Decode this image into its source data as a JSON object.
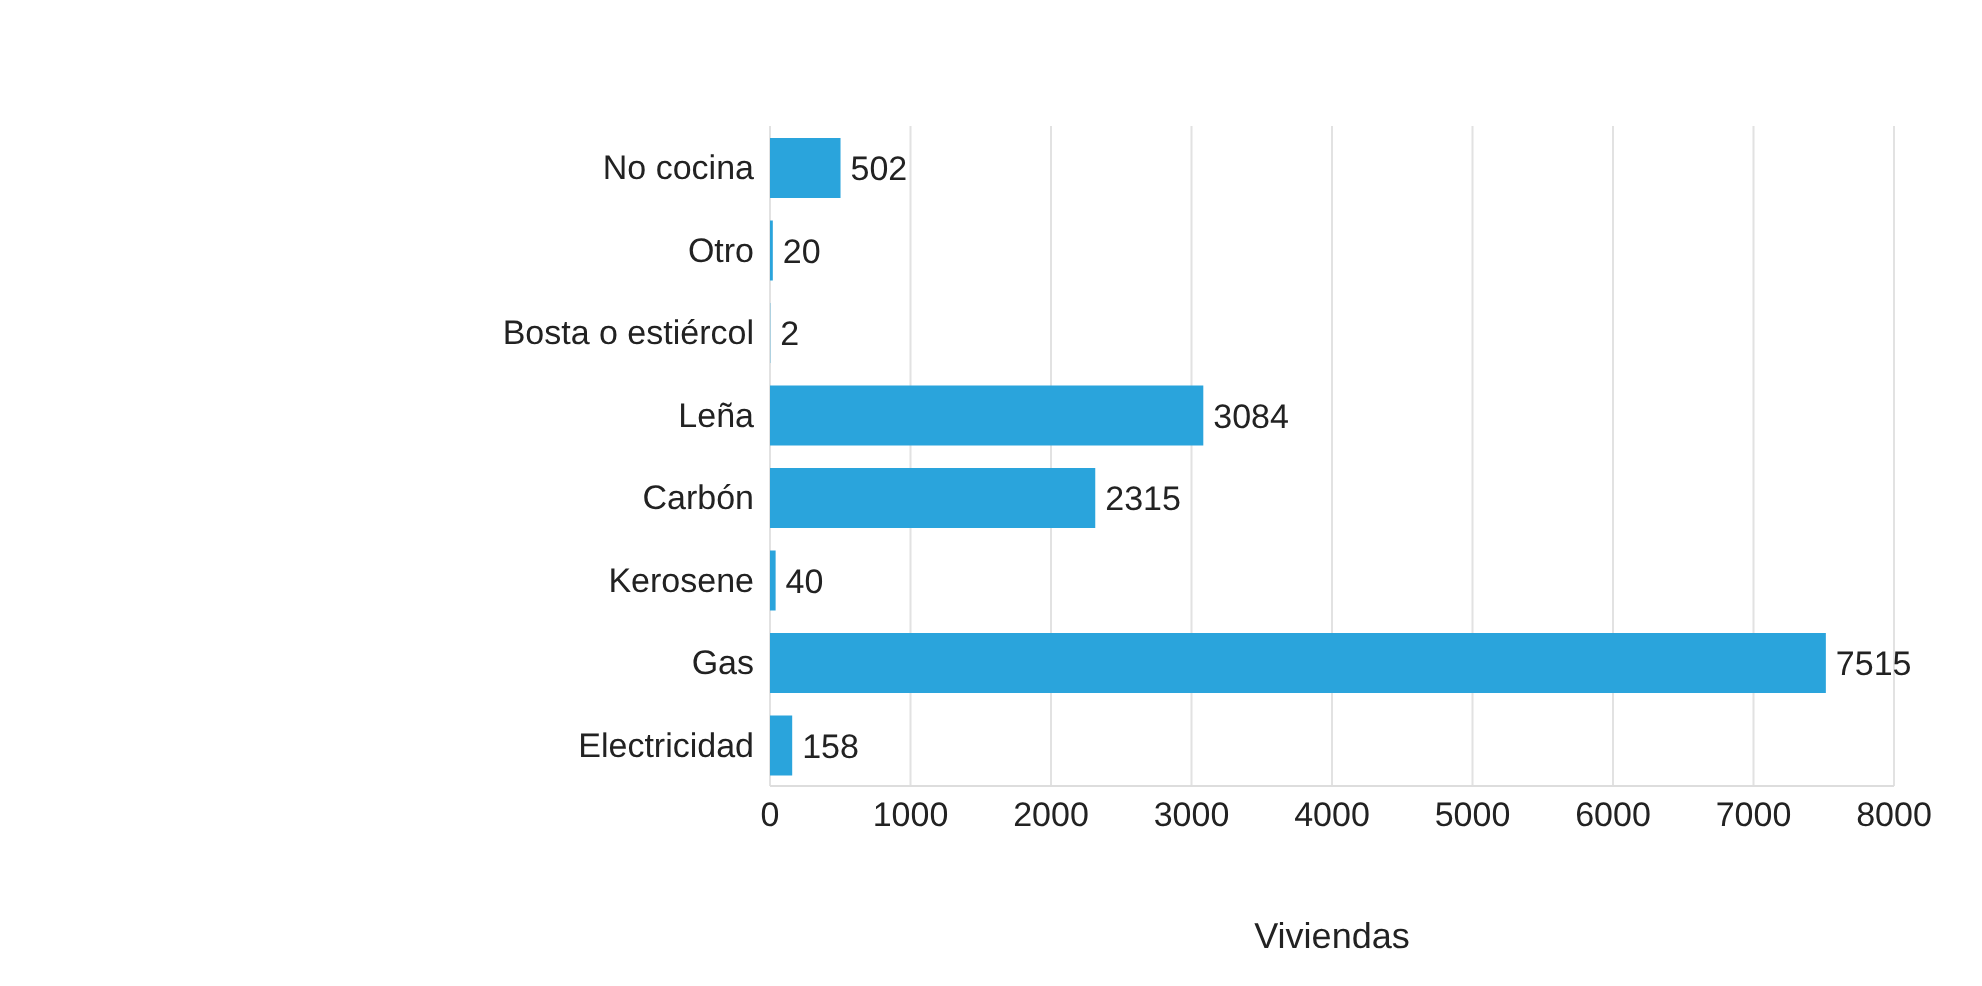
{
  "chart_data": {
    "type": "bar",
    "orientation": "horizontal",
    "xlabel": "Viviendas",
    "categories": [
      "No cocina",
      "Otro",
      "Bosta o estiércol",
      "Leña",
      "Carbón",
      "Kerosene",
      "Gas",
      "Electricidad"
    ],
    "values": [
      502,
      20,
      2,
      3084,
      2315,
      40,
      7515,
      158
    ],
    "color": "#2aa4dc",
    "xlim": [
      0,
      8000
    ],
    "xticks": [
      0,
      1000,
      2000,
      3000,
      4000,
      5000,
      6000,
      7000,
      8000
    ],
    "grid": "x",
    "data_labels": true
  }
}
